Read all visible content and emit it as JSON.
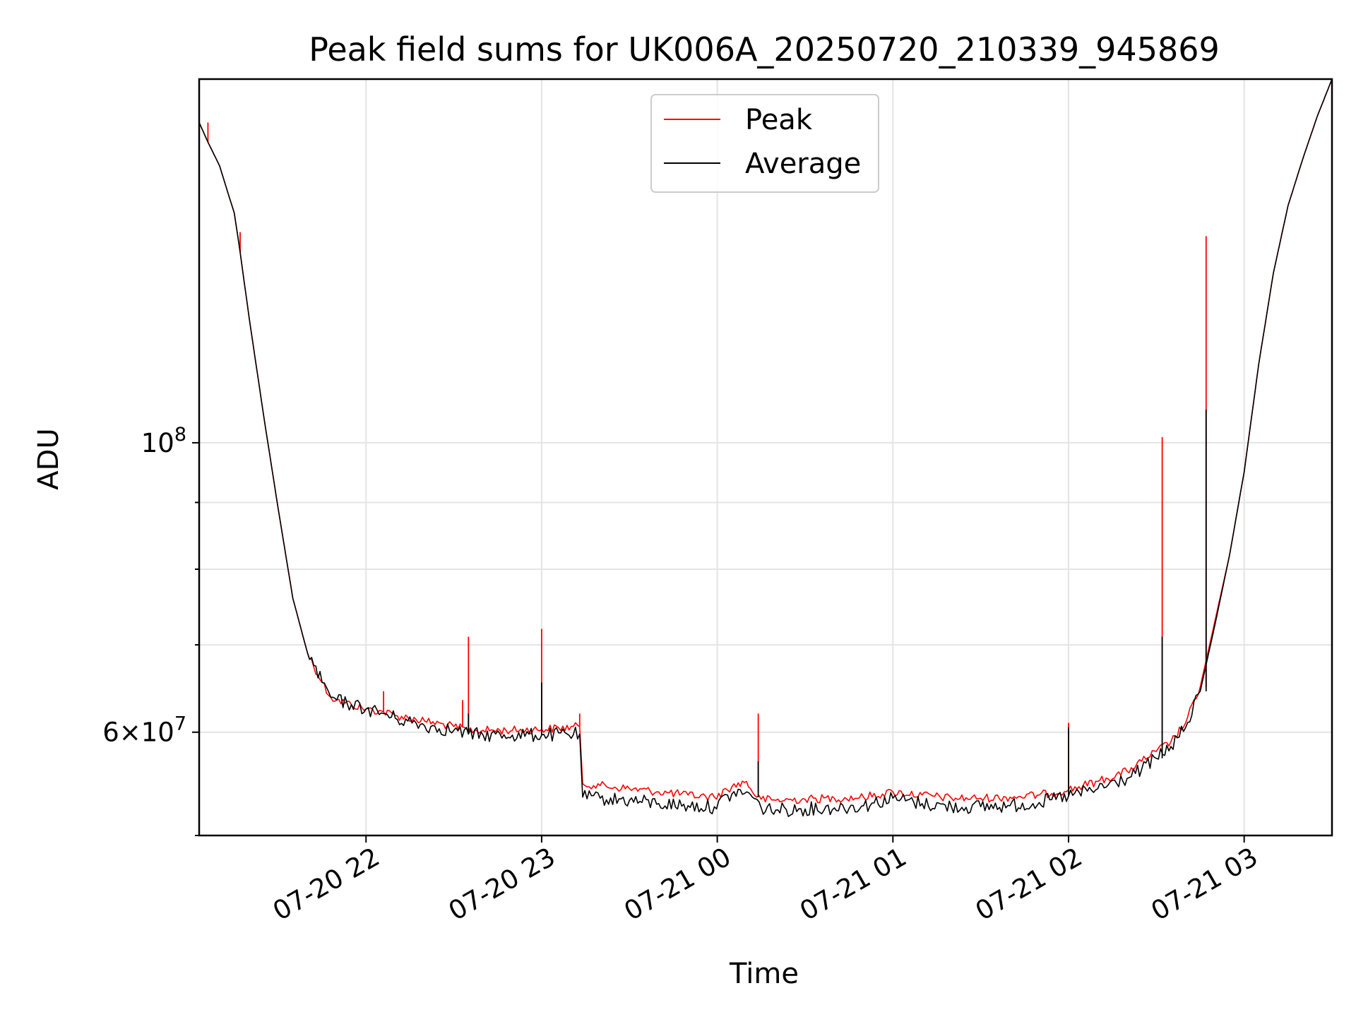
{
  "chart_data": {
    "type": "line",
    "title": "Peak field sums for UK006A_20250720_210339_945869",
    "xlabel": "Time",
    "ylabel": "ADU",
    "y_scale": "log",
    "ylim": [
      50000000,
      190000000
    ],
    "xlim": [
      "2025-07-20 21:03",
      "2025-07-21 03:30"
    ],
    "x_ticks": [
      {
        "value": "2025-07-20 22:00",
        "label": "07-20 22"
      },
      {
        "value": "2025-07-20 23:00",
        "label": "07-20 23"
      },
      {
        "value": "2025-07-21 00:00",
        "label": "07-21 00"
      },
      {
        "value": "2025-07-21 01:00",
        "label": "07-21 01"
      },
      {
        "value": "2025-07-21 02:00",
        "label": "07-21 02"
      },
      {
        "value": "2025-07-21 03:00",
        "label": "07-21 03"
      }
    ],
    "y_major_ticks": [
      {
        "value": 100000000,
        "base": "10",
        "exp": "8"
      },
      {
        "value": 60000000,
        "mant": "6",
        "base": "10",
        "exp": "7"
      }
    ],
    "y_minor_ticks": [
      50000000,
      70000000,
      80000000,
      90000000
    ],
    "grid": true,
    "legend_position": "top-center",
    "series": [
      {
        "name": "Peak",
        "color": "#ff0000",
        "x": [
          "2025-07-20 21:03",
          "2025-07-20 21:06",
          "2025-07-20 21:10",
          "2025-07-20 21:13",
          "2025-07-20 21:15",
          "2025-07-20 21:17",
          "2025-07-20 21:20",
          "2025-07-20 21:25",
          "2025-07-20 21:30",
          "2025-07-20 21:35",
          "2025-07-20 21:40",
          "2025-07-20 21:45",
          "2025-07-20 21:48",
          "2025-07-20 21:50",
          "2025-07-20 21:55",
          "2025-07-20 22:00",
          "2025-07-20 22:06",
          "2025-07-20 22:10",
          "2025-07-20 22:20",
          "2025-07-20 22:30",
          "2025-07-20 22:35",
          "2025-07-20 22:40",
          "2025-07-20 22:50",
          "2025-07-20 23:00",
          "2025-07-20 23:13",
          "2025-07-20 23:14",
          "2025-07-20 23:20",
          "2025-07-20 23:30",
          "2025-07-20 23:40",
          "2025-07-20 23:50",
          "2025-07-20 23:59",
          "2025-07-21 00:05",
          "2025-07-21 00:10",
          "2025-07-21 00:12",
          "2025-07-21 00:15",
          "2025-07-21 00:20",
          "2025-07-21 00:30",
          "2025-07-21 00:40",
          "2025-07-21 00:50",
          "2025-07-21 01:00",
          "2025-07-21 01:10",
          "2025-07-21 01:20",
          "2025-07-21 01:30",
          "2025-07-21 01:40",
          "2025-07-21 01:50",
          "2025-07-21 02:00",
          "2025-07-21 02:10",
          "2025-07-21 02:20",
          "2025-07-21 02:25",
          "2025-07-21 02:30",
          "2025-07-21 02:35",
          "2025-07-21 02:40",
          "2025-07-21 02:45",
          "2025-07-21 02:50",
          "2025-07-21 02:55",
          "2025-07-21 03:00",
          "2025-07-21 03:05",
          "2025-07-21 03:10",
          "2025-07-21 03:15",
          "2025-07-21 03:20",
          "2025-07-21 03:25",
          "2025-07-21 03:30"
        ],
        "y": [
          176000000,
          170000000,
          163000000,
          155000000,
          150000000,
          140000000,
          125000000,
          105000000,
          89000000,
          76000000,
          69000000,
          65500000,
          63800000,
          63500000,
          63000000,
          62500000,
          62200000,
          61800000,
          61200000,
          60600000,
          60200000,
          60200000,
          60200000,
          60300000,
          60600000,
          54800000,
          54600000,
          54300000,
          54000000,
          53700000,
          53500000,
          54500000,
          55000000,
          54000000,
          53300000,
          53200000,
          53300000,
          53400000,
          53500000,
          54000000,
          53700000,
          53400000,
          53400000,
          53500000,
          53700000,
          54200000,
          55000000,
          56000000,
          57000000,
          58000000,
          59000000,
          61000000,
          65000000,
          73000000,
          82000000,
          95000000,
          115000000,
          135000000,
          152000000,
          165000000,
          178000000,
          190000000
        ],
        "spikes": [
          {
            "x": "2025-07-20 21:06",
            "y": 176000000
          },
          {
            "x": "2025-07-20 21:17",
            "y": 145000000
          },
          {
            "x": "2025-07-20 22:06",
            "y": 64500000
          },
          {
            "x": "2025-07-20 22:33",
            "y": 63500000
          },
          {
            "x": "2025-07-20 22:35",
            "y": 71000000
          },
          {
            "x": "2025-07-20 23:00",
            "y": 72000000
          },
          {
            "x": "2025-07-20 23:13",
            "y": 62000000
          },
          {
            "x": "2025-07-21 00:14",
            "y": 62000000
          },
          {
            "x": "2025-07-21 02:00",
            "y": 61000000
          },
          {
            "x": "2025-07-21 02:32",
            "y": 101000000
          },
          {
            "x": "2025-07-21 02:47",
            "y": 144000000
          }
        ]
      },
      {
        "name": "Average",
        "color": "#000000",
        "x": [
          "2025-07-20 21:03",
          "2025-07-20 21:06",
          "2025-07-20 21:10",
          "2025-07-20 21:13",
          "2025-07-20 21:15",
          "2025-07-20 21:17",
          "2025-07-20 21:20",
          "2025-07-20 21:25",
          "2025-07-20 21:30",
          "2025-07-20 21:35",
          "2025-07-20 21:40",
          "2025-07-20 21:45",
          "2025-07-20 21:48",
          "2025-07-20 21:50",
          "2025-07-20 21:55",
          "2025-07-20 22:00",
          "2025-07-20 22:06",
          "2025-07-20 22:10",
          "2025-07-20 22:20",
          "2025-07-20 22:30",
          "2025-07-20 22:35",
          "2025-07-20 22:40",
          "2025-07-20 22:50",
          "2025-07-20 23:00",
          "2025-07-20 23:13",
          "2025-07-20 23:14",
          "2025-07-20 23:20",
          "2025-07-20 23:30",
          "2025-07-20 23:40",
          "2025-07-20 23:50",
          "2025-07-20 23:59",
          "2025-07-21 00:05",
          "2025-07-21 00:10",
          "2025-07-21 00:12",
          "2025-07-21 00:15",
          "2025-07-21 00:20",
          "2025-07-21 00:30",
          "2025-07-21 00:40",
          "2025-07-21 00:50",
          "2025-07-21 01:00",
          "2025-07-21 01:10",
          "2025-07-21 01:20",
          "2025-07-21 01:30",
          "2025-07-21 01:40",
          "2025-07-21 01:50",
          "2025-07-21 02:00",
          "2025-07-21 02:10",
          "2025-07-21 02:20",
          "2025-07-21 02:25",
          "2025-07-21 02:30",
          "2025-07-21 02:35",
          "2025-07-21 02:40",
          "2025-07-21 02:45",
          "2025-07-21 02:50",
          "2025-07-21 02:55",
          "2025-07-21 03:00",
          "2025-07-21 03:05",
          "2025-07-21 03:10",
          "2025-07-21 03:15",
          "2025-07-21 03:20",
          "2025-07-21 03:25",
          "2025-07-21 03:30"
        ],
        "y": [
          176000000,
          170000000,
          163000000,
          155000000,
          150000000,
          140000000,
          125000000,
          105000000,
          89000000,
          76000000,
          69000000,
          65500000,
          63800000,
          63500000,
          63000000,
          62500000,
          62000000,
          61500000,
          60700000,
          60200000,
          59800000,
          59700000,
          59700000,
          59700000,
          59800000,
          53500000,
          53400000,
          53200000,
          52900000,
          52700000,
          52600000,
          53800000,
          54000000,
          53500000,
          52500000,
          52300000,
          52400000,
          52500000,
          52700000,
          53400000,
          52900000,
          52600000,
          52600000,
          52700000,
          53000000,
          53600000,
          54300000,
          55300000,
          56200000,
          57300000,
          58500000,
          60500000,
          64500000,
          72500000,
          82000000,
          95000000,
          115000000,
          135000000,
          152000000,
          165000000,
          178000000,
          190000000
        ],
        "spikes": [
          {
            "x": "2025-07-20 22:35",
            "y": 62000000
          },
          {
            "x": "2025-07-20 23:00",
            "y": 65500000
          },
          {
            "x": "2025-07-21 00:14",
            "y": 57000000
          },
          {
            "x": "2025-07-21 02:00",
            "y": 60500000
          },
          {
            "x": "2025-07-21 02:32",
            "y": 71000000
          },
          {
            "x": "2025-07-21 02:47",
            "y": 106000000
          }
        ]
      }
    ]
  }
}
